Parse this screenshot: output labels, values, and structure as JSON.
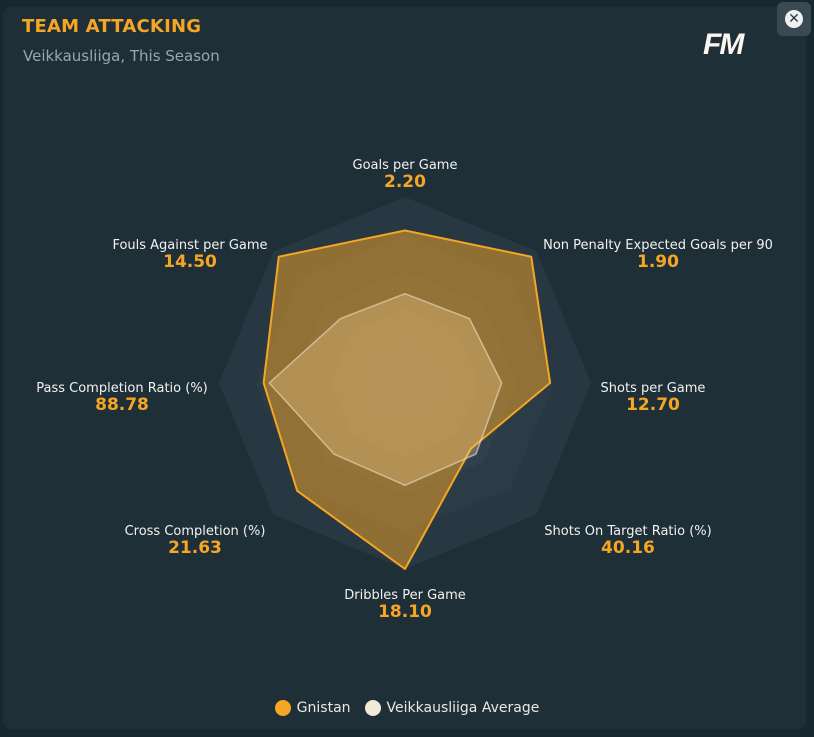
{
  "header": {
    "title": "TEAM ATTACKING",
    "subtitle": "Veikkausliiga, This Season",
    "logo": "FM",
    "close_icon": "close-icon"
  },
  "colors": {
    "team": "#f5a623",
    "average": "#f0ead8"
  },
  "chart_data": {
    "type": "radar",
    "title": "TEAM ATTACKING",
    "subtitle": "Veikkausliiga, This Season",
    "rings": 5,
    "axes": [
      {
        "label": "Goals per Game",
        "value": "2.20"
      },
      {
        "label": "Non Penalty Expected Goals per 90",
        "value": "1.90"
      },
      {
        "label": "Shots per Game",
        "value": "12.70"
      },
      {
        "label": "Shots On Target Ratio (%)",
        "value": "40.16"
      },
      {
        "label": "Dribbles Per Game",
        "value": "18.10"
      },
      {
        "label": "Cross Completion (%)",
        "value": "21.63"
      },
      {
        "label": "Pass Completion Ratio (%)",
        "value": "88.78"
      },
      {
        "label": "Fouls Against per Game",
        "value": "14.50"
      }
    ],
    "series": [
      {
        "name": "Gnistan",
        "normalized": [
          0.82,
          0.96,
          0.78,
          0.5,
          1.0,
          0.82,
          0.76,
          0.96
        ]
      },
      {
        "name": "Veikkausliiga Average",
        "normalized": [
          0.48,
          0.49,
          0.52,
          0.54,
          0.55,
          0.54,
          0.73,
          0.49
        ]
      }
    ],
    "legend": "bottom-center"
  }
}
